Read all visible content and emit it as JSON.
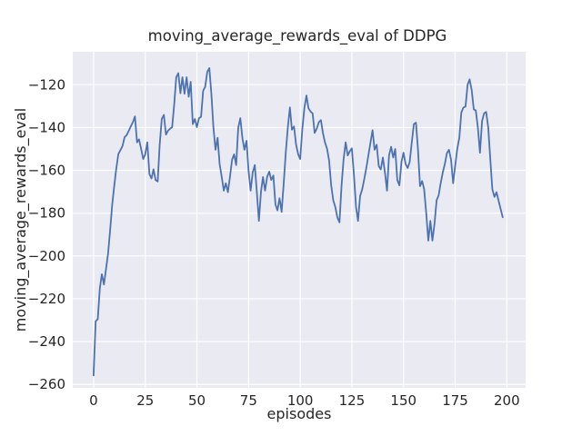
{
  "chart_data": {
    "type": "line",
    "title": "moving_average_rewards_eval of DDPG",
    "xlabel": "episodes",
    "ylabel": "moving_average_rewards_eval",
    "x_ticks": [
      0,
      25,
      50,
      75,
      100,
      125,
      150,
      175,
      200
    ],
    "y_ticks": [
      -120,
      -140,
      -160,
      -180,
      -200,
      -220,
      -240,
      -260
    ],
    "xlim": [
      -10.1,
      209.1
    ],
    "ylim": [
      -261.6,
      -104.6
    ],
    "grid": true,
    "legend": null,
    "style": {
      "line_color": "#4c72b0",
      "axes_background": "#eaeaf2",
      "grid_color": "#ffffff",
      "text_color": "#262626",
      "figure_background": "#ffffff"
    },
    "series": [
      {
        "name": "moving_average_rewards_eval",
        "x": [
          0,
          1,
          2,
          3,
          4,
          5,
          6,
          7,
          8,
          9,
          10,
          11,
          12,
          13,
          14,
          15,
          16,
          17,
          18,
          19,
          20,
          21,
          22,
          23,
          24,
          25,
          26,
          27,
          28,
          29,
          30,
          31,
          32,
          33,
          34,
          35,
          36,
          37,
          38,
          39,
          40,
          41,
          42,
          43,
          44,
          45,
          46,
          47,
          48,
          49,
          50,
          51,
          52,
          53,
          54,
          55,
          56,
          57,
          58,
          59,
          60,
          61,
          62,
          63,
          64,
          65,
          66,
          67,
          68,
          69,
          70,
          71,
          72,
          73,
          74,
          75,
          76,
          77,
          78,
          79,
          80,
          81,
          82,
          83,
          84,
          85,
          86,
          87,
          88,
          89,
          90,
          91,
          92,
          93,
          94,
          95,
          96,
          97,
          98,
          99,
          100,
          101,
          102,
          103,
          104,
          105,
          106,
          107,
          108,
          109,
          110,
          111,
          112,
          113,
          114,
          115,
          116,
          117,
          118,
          119,
          120,
          121,
          122,
          123,
          124,
          125,
          126,
          127,
          128,
          129,
          130,
          131,
          132,
          133,
          134,
          135,
          136,
          137,
          138,
          139,
          140,
          141,
          142,
          143,
          144,
          145,
          146,
          147,
          148,
          149,
          150,
          151,
          152,
          153,
          154,
          155,
          156,
          157,
          158,
          159,
          160,
          161,
          162,
          163,
          164,
          165,
          166,
          167,
          168,
          169,
          170,
          171,
          172,
          173,
          174,
          175,
          176,
          177,
          178,
          179,
          180,
          181,
          182,
          183,
          184,
          185,
          186,
          187,
          188,
          189,
          190,
          191,
          192,
          193,
          194,
          195,
          196,
          197,
          198
        ],
        "y": [
          -255.8,
          -230.5,
          -229.5,
          -215,
          -208.5,
          -213.3,
          -206,
          -199,
          -188,
          -176,
          -167,
          -159,
          -152.3,
          -150.5,
          -148.5,
          -144.5,
          -143.5,
          -141.5,
          -139.5,
          -137.5,
          -134.8,
          -146.9,
          -145.5,
          -150,
          -154.7,
          -152.5,
          -146.9,
          -161.7,
          -163.8,
          -159.5,
          -164.5,
          -165.2,
          -148,
          -136,
          -134.1,
          -143.3,
          -141.5,
          -140.5,
          -139.8,
          -129,
          -116.5,
          -114.6,
          -124,
          -116.5,
          -124.2,
          -116.5,
          -125.6,
          -118.6,
          -138.4,
          -136,
          -139.8,
          -135.6,
          -135,
          -122.8,
          -121,
          -114,
          -112.2,
          -124,
          -140,
          -150.4,
          -144.8,
          -157,
          -163,
          -169.5,
          -166,
          -170.2,
          -163,
          -155,
          -152.5,
          -157.5,
          -140,
          -135.6,
          -144.8,
          -150.4,
          -146.2,
          -160,
          -169.5,
          -161,
          -157.5,
          -170,
          -183.6,
          -170,
          -163.1,
          -169.5,
          -163,
          -160.6,
          -164.5,
          -162.4,
          -175.9,
          -178.7,
          -173,
          -179.4,
          -166,
          -152,
          -140,
          -130.6,
          -141,
          -139.5,
          -148,
          -152.5,
          -154.7,
          -141,
          -131,
          -125,
          -131,
          -132.5,
          -133.4,
          -142.5,
          -140.5,
          -137.5,
          -136.5,
          -142.5,
          -147,
          -150,
          -155.4,
          -167,
          -174,
          -177.3,
          -182,
          -184.3,
          -167,
          -155,
          -146.9,
          -153,
          -151,
          -149.7,
          -162,
          -177,
          -183.6,
          -172,
          -168.8,
          -164,
          -158.9,
          -153,
          -147,
          -141.2,
          -150.4,
          -148,
          -158,
          -159.6,
          -154,
          -161,
          -169.5,
          -153,
          -149,
          -154,
          -150,
          -164.5,
          -167,
          -156,
          -151.8,
          -157,
          -158.9,
          -156.1,
          -147,
          -138.4,
          -137.7,
          -150,
          -167.4,
          -165,
          -168.7,
          -180,
          -192.8,
          -183.6,
          -192.8,
          -185,
          -174,
          -171.6,
          -166,
          -161,
          -157,
          -152,
          -150.4,
          -155,
          -166,
          -158,
          -150,
          -144.8,
          -133,
          -130.6,
          -130.2,
          -120,
          -117.5,
          -122.5,
          -131.5,
          -132,
          -140,
          -151.8,
          -137,
          -133.4,
          -132.7,
          -140,
          -155,
          -168.8,
          -172.4,
          -170.2,
          -174,
          -178,
          -181.9
        ]
      }
    ]
  }
}
